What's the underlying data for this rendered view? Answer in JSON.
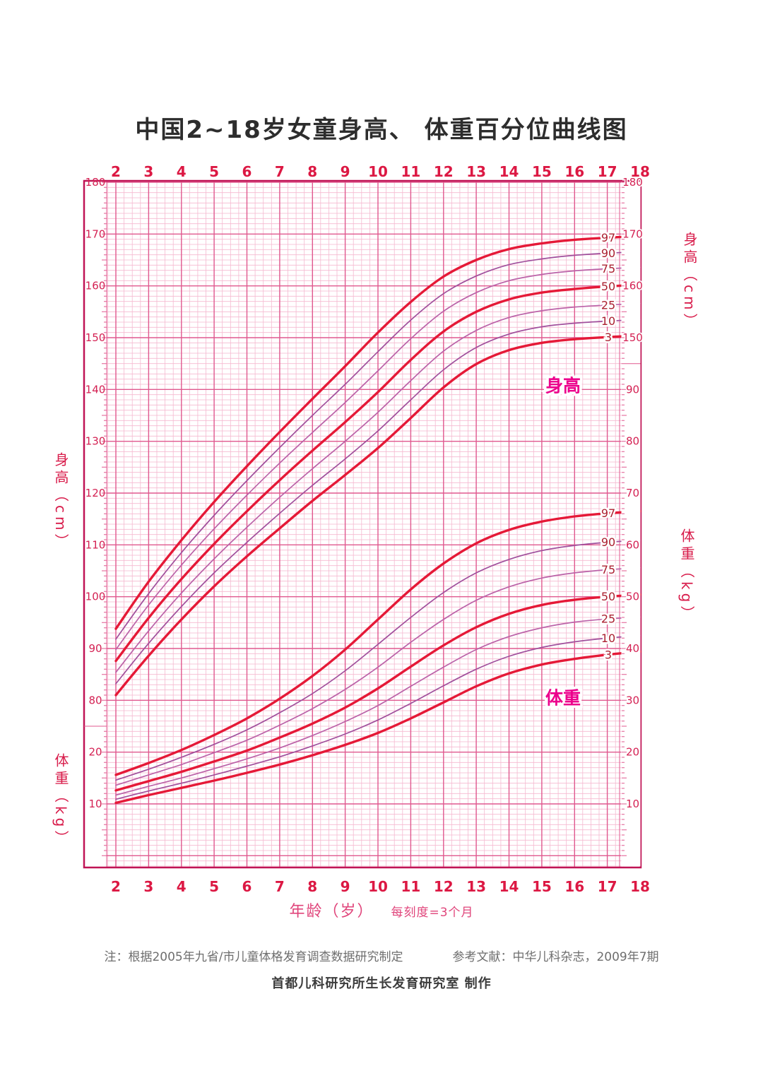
{
  "title": "中国2~18岁女童身高、 体重百分位曲线图",
  "axes": {
    "top_age_ticks": [
      2,
      3,
      4,
      5,
      6,
      7,
      8,
      9,
      10,
      11,
      12,
      13,
      14,
      15,
      16,
      17,
      18
    ],
    "bottom_age_ticks": [
      2,
      3,
      4,
      5,
      6,
      7,
      8,
      9,
      10,
      11,
      12,
      13,
      14,
      15,
      16,
      17,
      18
    ],
    "left_height_ticks": [
      180,
      170,
      160,
      150,
      140,
      130,
      120,
      110,
      100,
      90,
      80
    ],
    "left_weight_ticks": [
      20,
      10
    ],
    "right_height_ticks": [
      180,
      170,
      160,
      150
    ],
    "right_weight_ticks": [
      90,
      80,
      70,
      60,
      50,
      40,
      30,
      20,
      10
    ],
    "left_height_label": "身高（cm）",
    "left_weight_label": "体重（kg）",
    "right_height_label": "身高（cm）",
    "right_weight_label": "体重（kg）",
    "bottom_label_main": "年龄（岁）",
    "bottom_label_sub": "每刻度=3个月"
  },
  "series_labels": {
    "height": "身高",
    "weight": "体重"
  },
  "footer": {
    "note": "注：根据2005年九省/市儿童体格发育调查数据研究制定",
    "reference": "参考文献：中华儿科杂志，2009年7期",
    "credit": "首都儿科研究所生长发育研究室 制作"
  },
  "colors": {
    "grid_fine": "#f5b9d0",
    "grid_major": "#e0598f",
    "frame": "#c01455",
    "tick_text": "#d42153",
    "age_text": "#dc1843",
    "bold_curve": "#e51937",
    "curve_90_10": "#a04f9c",
    "curve_75_25": "#bb62a8",
    "percentile_text": "#ab2030",
    "series_label_text": "#ec008c",
    "caption_text": "#d81b4a",
    "x_caption_text": "#e0457b",
    "note_text": "#6e6e6e",
    "credit_text": "#3c3c3c",
    "title_text": "#2d2d2d"
  },
  "chart_data": {
    "type": "line",
    "title": "中国2~18岁女童身高、体重百分位曲线图",
    "x": [
      2,
      3,
      4,
      5,
      6,
      7,
      8,
      9,
      10,
      11,
      12,
      13,
      14,
      15,
      16,
      17,
      18
    ],
    "xlabel": "年龄（岁）",
    "x_tick_note": "每刻度=3个月",
    "height_axis": {
      "unit": "cm",
      "range": [
        80,
        180
      ]
    },
    "weight_axis": {
      "unit": "kg",
      "range": [
        10,
        90
      ]
    },
    "legend_position": "on-curve-right",
    "grid": true,
    "height_series": [
      {
        "name": "97",
        "bold": true,
        "values": [
          93.8,
          102.9,
          110.9,
          118.3,
          125.2,
          131.8,
          138.2,
          144.5,
          151.0,
          156.9,
          161.8,
          165.0,
          167.1,
          168.2,
          168.9,
          169.3,
          169.6
        ]
      },
      {
        "name": "90",
        "bold": false,
        "values": [
          91.8,
          100.6,
          108.5,
          115.7,
          122.4,
          128.8,
          135.0,
          141.0,
          147.3,
          153.4,
          158.5,
          161.9,
          164.1,
          165.2,
          165.9,
          166.3,
          166.6
        ]
      },
      {
        "name": "75",
        "bold": false,
        "values": [
          89.8,
          98.4,
          106.1,
          113.1,
          119.6,
          125.8,
          131.7,
          137.5,
          143.6,
          149.8,
          155.1,
          158.7,
          161.0,
          162.2,
          162.9,
          163.3,
          163.6
        ]
      },
      {
        "name": "50",
        "bold": true,
        "values": [
          87.6,
          95.9,
          103.4,
          110.2,
          116.5,
          122.5,
          128.2,
          133.7,
          139.5,
          145.7,
          151.2,
          155.0,
          157.4,
          158.7,
          159.4,
          159.9,
          160.2
        ]
      },
      {
        "name": "25",
        "bold": false,
        "values": [
          85.4,
          93.4,
          100.7,
          107.3,
          113.4,
          119.2,
          124.7,
          130.0,
          135.6,
          141.7,
          147.4,
          151.4,
          153.9,
          155.2,
          155.9,
          156.3,
          156.6
        ]
      },
      {
        "name": "10",
        "bold": false,
        "values": [
          83.2,
          91.0,
          98.1,
          104.6,
          110.5,
          116.1,
          121.5,
          126.6,
          132.0,
          138.0,
          143.8,
          148.1,
          150.7,
          152.1,
          152.8,
          153.2,
          153.5
        ]
      },
      {
        "name": "3",
        "bold": true,
        "values": [
          81.0,
          88.6,
          95.6,
          102.0,
          107.8,
          113.2,
          118.5,
          123.5,
          128.7,
          134.5,
          140.4,
          144.9,
          147.6,
          149.0,
          149.7,
          150.1,
          150.4
        ]
      }
    ],
    "weight_series": [
      {
        "name": "97",
        "bold": true,
        "values": [
          15.6,
          17.9,
          20.4,
          23.3,
          26.5,
          30.3,
          34.7,
          39.8,
          45.6,
          51.4,
          56.4,
          60.3,
          62.9,
          64.5,
          65.5,
          66.1,
          66.5
        ]
      },
      {
        "name": "90",
        "bold": false,
        "values": [
          14.6,
          16.7,
          19.0,
          21.5,
          24.3,
          27.6,
          31.3,
          35.7,
          40.8,
          46.0,
          50.8,
          54.6,
          57.2,
          58.9,
          59.9,
          60.5,
          60.9
        ]
      },
      {
        "name": "75",
        "bold": false,
        "values": [
          13.6,
          15.6,
          17.6,
          19.9,
          22.3,
          25.2,
          28.4,
          32.1,
          36.4,
          41.2,
          45.6,
          49.3,
          51.9,
          53.6,
          54.6,
          55.2,
          55.6
        ]
      },
      {
        "name": "50",
        "bold": true,
        "values": [
          12.6,
          14.4,
          16.2,
          18.2,
          20.3,
          22.8,
          25.5,
          28.6,
          32.3,
          36.5,
          40.6,
          44.1,
          46.7,
          48.4,
          49.4,
          50.0,
          50.4
        ]
      },
      {
        "name": "25",
        "bold": false,
        "values": [
          11.7,
          13.4,
          15.0,
          16.8,
          18.7,
          20.8,
          23.2,
          25.9,
          29.0,
          32.7,
          36.4,
          39.8,
          42.3,
          44.0,
          45.1,
          45.7,
          46.1
        ]
      },
      {
        "name": "10",
        "bold": false,
        "values": [
          10.9,
          12.5,
          14.0,
          15.6,
          17.3,
          19.1,
          21.2,
          23.5,
          26.2,
          29.4,
          32.8,
          36.0,
          38.5,
          40.2,
          41.3,
          42.0,
          42.5
        ]
      },
      {
        "name": "3",
        "bold": true,
        "values": [
          10.2,
          11.7,
          13.1,
          14.5,
          16.0,
          17.6,
          19.4,
          21.4,
          23.7,
          26.5,
          29.6,
          32.7,
          35.2,
          36.9,
          38.0,
          38.8,
          39.4
        ]
      }
    ]
  }
}
